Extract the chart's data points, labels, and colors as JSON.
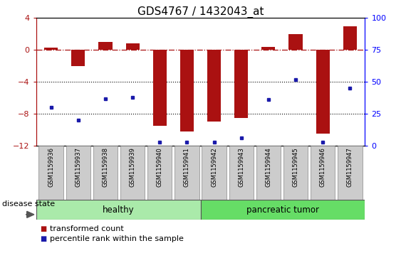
{
  "title": "GDS4767 / 1432043_at",
  "samples": [
    "GSM1159936",
    "GSM1159937",
    "GSM1159938",
    "GSM1159939",
    "GSM1159940",
    "GSM1159941",
    "GSM1159942",
    "GSM1159943",
    "GSM1159944",
    "GSM1159945",
    "GSM1159946",
    "GSM1159947"
  ],
  "transformed_count": [
    0.3,
    -2.0,
    1.0,
    0.8,
    -9.5,
    -10.2,
    -9.0,
    -8.5,
    0.4,
    2.0,
    -10.5,
    3.0
  ],
  "percentile_rank": [
    30,
    20,
    37,
    38,
    3,
    3,
    3,
    6,
    36,
    52,
    3,
    45
  ],
  "ylim_left": [
    -12,
    4
  ],
  "ylim_right": [
    0,
    100
  ],
  "bar_color": "#aa1111",
  "dot_color": "#1a1aaa",
  "dotted_lines": [
    -4,
    -8
  ],
  "healthy_count": 6,
  "tumor_count": 6,
  "healthy_label": "healthy",
  "tumor_label": "pancreatic tumor",
  "healthy_color": "#aaeaaa",
  "tumor_color": "#66dd66",
  "xtick_bg": "#cccccc",
  "disease_state_label": "disease state",
  "legend_red_label": "transformed count",
  "legend_blue_label": "percentile rank within the sample",
  "bar_width": 0.5,
  "tick_label_fontsize": 6.0,
  "title_fontsize": 11,
  "ytick_fontsize": 8,
  "legend_fontsize": 8
}
